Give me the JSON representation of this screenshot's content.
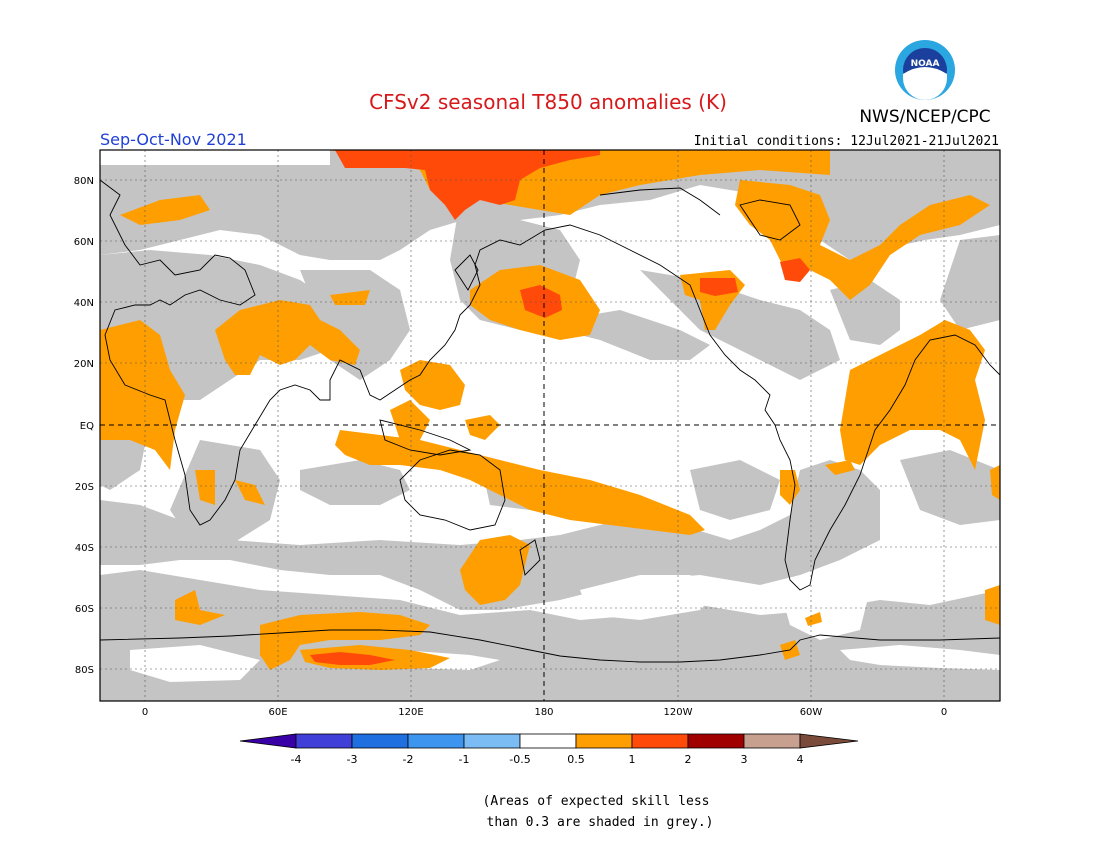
{
  "title": "CFSv2 seasonal T850 anomalies (K)",
  "agency": "NWS/NCEP/CPC",
  "logo_text": "NOAA",
  "season": "Sep-Oct-Nov 2021",
  "initial_conditions": "Initial conditions: 12Jul2021-21Jul2021",
  "note_line1": "(Areas of expected skill less",
  "note_line2": "than 0.3 are shaded in grey.)",
  "colors": {
    "title": "#d7191c",
    "season": "#1f3fd6",
    "grey_low_skill": "#c4c4c4",
    "warm_0_5": "#ff9e00",
    "warm_1": "#ff4a0a",
    "warm_2": "#a00000"
  },
  "map": {
    "projection": "equirectangular",
    "lon_ticks": [
      "0",
      "60E",
      "120E",
      "180",
      "120W",
      "60W",
      "0"
    ],
    "lat_ticks": [
      "80N",
      "60N",
      "40N",
      "20N",
      "EQ",
      "20S",
      "40S",
      "60S",
      "80S"
    ],
    "dashed_reference_lines": [
      "EQ",
      "180"
    ]
  },
  "legend": {
    "labels": [
      "-4",
      "-3",
      "-2",
      "-1",
      "-0.5",
      "0.5",
      "1",
      "2",
      "3",
      "4"
    ],
    "colors": [
      "#3a00a8",
      "#4040d8",
      "#1f6fe0",
      "#3d95ef",
      "#7cbcf5",
      "#ffffff",
      "#ff9e00",
      "#ff4a0a",
      "#a00000",
      "#c7a08f",
      "#7a4a3a"
    ]
  }
}
